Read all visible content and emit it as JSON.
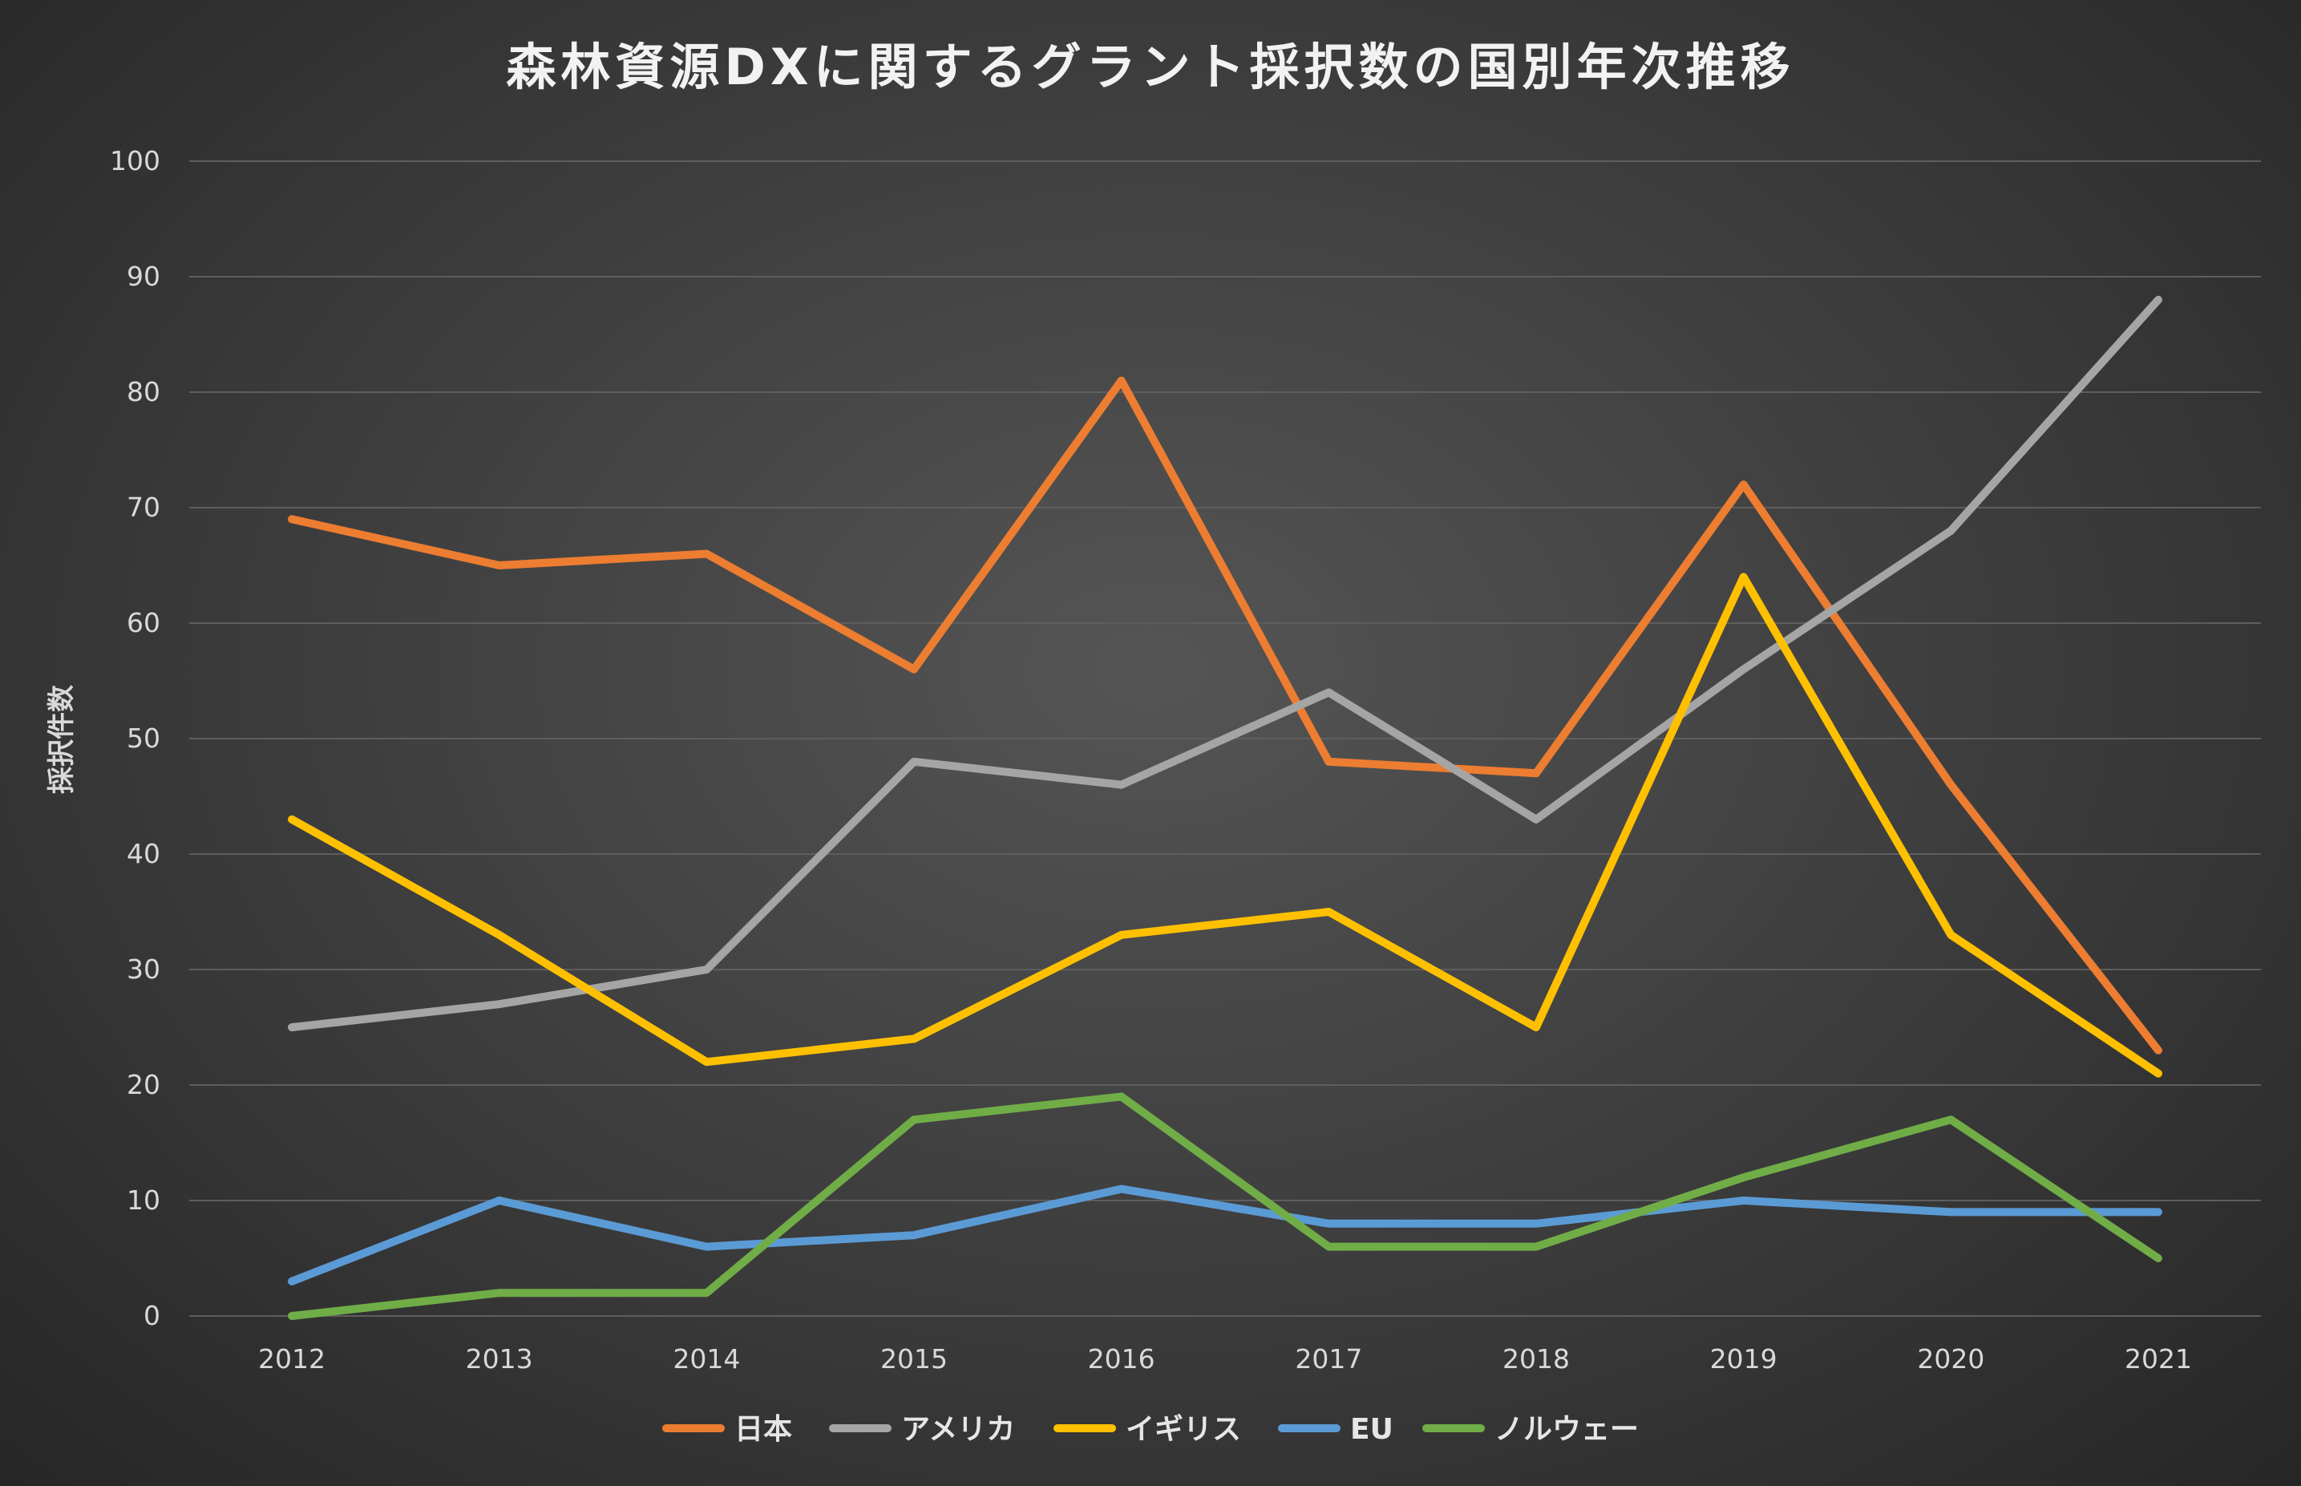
{
  "chart_data": {
    "type": "line",
    "title": "森林資源DXに関するグラント採択数の国別年次推移",
    "xlabel": "",
    "ylabel": "採択件数",
    "categories": [
      "2012",
      "2013",
      "2014",
      "2015",
      "2016",
      "2017",
      "2018",
      "2019",
      "2020",
      "2021"
    ],
    "ylim": [
      0,
      100
    ],
    "yticks": [
      0,
      10,
      20,
      30,
      40,
      50,
      60,
      70,
      80,
      90,
      100
    ],
    "grid": true,
    "legend_position": "bottom",
    "series": [
      {
        "name": "日本",
        "color": "#ED7D31",
        "values": [
          69,
          65,
          66,
          56,
          81,
          48,
          47,
          72,
          46,
          23
        ]
      },
      {
        "name": "アメリカ",
        "color": "#A5A5A5",
        "values": [
          25,
          27,
          30,
          48,
          46,
          54,
          43,
          56,
          68,
          88
        ]
      },
      {
        "name": "イギリス",
        "color": "#FFC000",
        "values": [
          43,
          33,
          22,
          24,
          33,
          35,
          25,
          64,
          33,
          21
        ]
      },
      {
        "name": "EU",
        "color": "#5B9BD5",
        "values": [
          3,
          10,
          6,
          7,
          11,
          8,
          8,
          10,
          9,
          9
        ]
      },
      {
        "name": "ノルウェー",
        "color": "#70AD47",
        "values": [
          0,
          2,
          2,
          17,
          19,
          6,
          6,
          12,
          17,
          5
        ]
      }
    ]
  }
}
